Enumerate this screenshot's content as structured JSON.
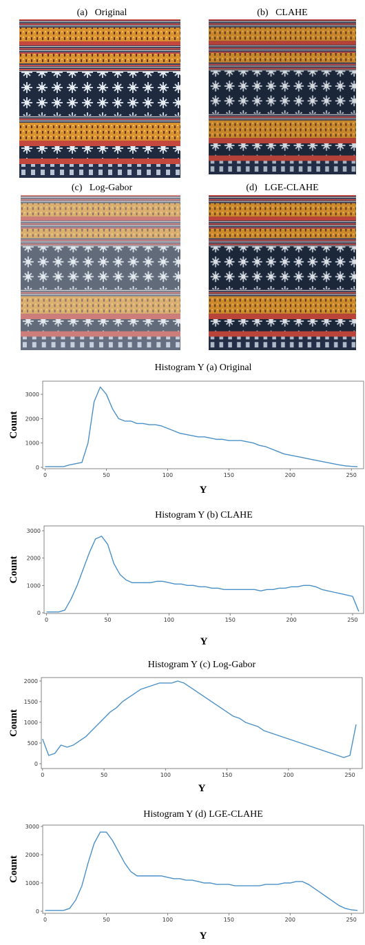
{
  "images": [
    {
      "caption": "(a)   Original"
    },
    {
      "caption": "(b)   CLAHE"
    },
    {
      "caption": "(c)   Log-Gabor"
    },
    {
      "caption": "(d)   LGE-CLAHE"
    }
  ],
  "chart_data": [
    {
      "type": "line",
      "title": "Histogram Y (a) Original",
      "xlabel": "Y",
      "ylabel": "Count",
      "color": "#4a90c8",
      "xlim": [
        -2,
        260
      ],
      "ylim": [
        -57,
        3540
      ],
      "xticks": [
        0,
        50,
        100,
        150,
        200,
        250
      ],
      "yticks": [
        0,
        1000,
        2000,
        3000
      ],
      "x": [
        0,
        5,
        10,
        15,
        20,
        25,
        30,
        35,
        40,
        45,
        50,
        55,
        60,
        65,
        70,
        75,
        80,
        85,
        90,
        95,
        100,
        105,
        110,
        115,
        120,
        125,
        130,
        135,
        140,
        145,
        150,
        155,
        160,
        165,
        170,
        175,
        180,
        185,
        190,
        195,
        200,
        205,
        210,
        215,
        220,
        225,
        230,
        235,
        240,
        245,
        250,
        255
      ],
      "values": [
        30,
        30,
        30,
        30,
        100,
        150,
        200,
        1000,
        2700,
        3300,
        3000,
        2400,
        2000,
        1900,
        1900,
        1800,
        1800,
        1750,
        1750,
        1700,
        1600,
        1500,
        1400,
        1350,
        1300,
        1250,
        1250,
        1200,
        1150,
        1150,
        1100,
        1100,
        1100,
        1050,
        1000,
        900,
        850,
        750,
        650,
        550,
        500,
        450,
        400,
        350,
        300,
        250,
        200,
        150,
        100,
        60,
        40,
        30
      ]
    },
    {
      "type": "line",
      "title": "Histogram Y (b) CLAHE",
      "xlabel": "Y",
      "ylabel": "Count",
      "color": "#4a90c8",
      "xlim": [
        -2,
        259
      ],
      "ylim": [
        -25,
        3176
      ],
      "xticks": [
        0,
        50,
        100,
        150,
        200,
        250
      ],
      "yticks": [
        0,
        1000,
        2000,
        3000
      ],
      "x": [
        0,
        5,
        10,
        15,
        20,
        25,
        30,
        35,
        40,
        45,
        50,
        55,
        60,
        65,
        70,
        75,
        80,
        85,
        90,
        95,
        100,
        105,
        110,
        115,
        120,
        125,
        130,
        135,
        140,
        145,
        150,
        155,
        160,
        165,
        170,
        175,
        180,
        185,
        190,
        195,
        200,
        205,
        210,
        215,
        220,
        225,
        230,
        235,
        240,
        245,
        250,
        255
      ],
      "values": [
        30,
        30,
        30,
        100,
        500,
        1000,
        1600,
        2200,
        2700,
        2800,
        2500,
        1800,
        1400,
        1200,
        1100,
        1100,
        1100,
        1100,
        1150,
        1150,
        1100,
        1050,
        1050,
        1000,
        1000,
        950,
        950,
        900,
        900,
        850,
        850,
        850,
        850,
        850,
        850,
        800,
        850,
        850,
        900,
        900,
        950,
        950,
        1000,
        1000,
        950,
        850,
        800,
        750,
        700,
        650,
        600,
        50
      ]
    },
    {
      "type": "line",
      "title": "Histogram Y (c) Log-Gabor",
      "xlabel": "Y",
      "ylabel": "Count",
      "color": "#4a90c8",
      "xlim": [
        -1,
        260
      ],
      "ylim": [
        -117,
        2083
      ],
      "xticks": [
        0,
        50,
        100,
        150,
        200,
        250
      ],
      "yticks": [
        0,
        500,
        1000,
        1500,
        2000
      ],
      "x": [
        0,
        5,
        10,
        15,
        20,
        25,
        30,
        35,
        40,
        45,
        50,
        55,
        60,
        65,
        70,
        75,
        80,
        85,
        90,
        95,
        100,
        105,
        110,
        115,
        120,
        125,
        130,
        135,
        140,
        145,
        150,
        155,
        160,
        165,
        170,
        175,
        180,
        185,
        190,
        195,
        200,
        205,
        210,
        215,
        220,
        225,
        230,
        235,
        240,
        245,
        250,
        255
      ],
      "values": [
        600,
        200,
        250,
        450,
        400,
        450,
        550,
        650,
        800,
        950,
        1100,
        1250,
        1350,
        1500,
        1600,
        1700,
        1800,
        1850,
        1900,
        1950,
        1950,
        1950,
        2000,
        1950,
        1850,
        1750,
        1650,
        1550,
        1450,
        1350,
        1250,
        1150,
        1100,
        1000,
        950,
        900,
        800,
        750,
        700,
        650,
        600,
        550,
        500,
        450,
        400,
        350,
        300,
        250,
        200,
        150,
        200,
        950
      ]
    },
    {
      "type": "line",
      "title": "Histogram Y (d) LGE-CLAHE",
      "xlabel": "Y",
      "ylabel": "Count",
      "color": "#4a90c8",
      "xlim": [
        -2,
        260
      ],
      "ylim": [
        -73,
        3049
      ],
      "xticks": [
        0,
        50,
        100,
        150,
        200,
        250
      ],
      "yticks": [
        0,
        1000,
        2000,
        3000
      ],
      "x": [
        0,
        5,
        10,
        15,
        20,
        25,
        30,
        35,
        40,
        45,
        50,
        55,
        60,
        65,
        70,
        75,
        80,
        85,
        90,
        95,
        100,
        105,
        110,
        115,
        120,
        125,
        130,
        135,
        140,
        145,
        150,
        155,
        160,
        165,
        170,
        175,
        180,
        185,
        190,
        195,
        200,
        205,
        210,
        215,
        220,
        225,
        230,
        235,
        240,
        245,
        250,
        255
      ],
      "values": [
        30,
        30,
        30,
        30,
        100,
        400,
        900,
        1700,
        2400,
        2800,
        2800,
        2500,
        2100,
        1700,
        1400,
        1250,
        1250,
        1250,
        1250,
        1250,
        1200,
        1150,
        1150,
        1100,
        1100,
        1050,
        1000,
        1000,
        950,
        950,
        950,
        900,
        900,
        900,
        900,
        900,
        950,
        950,
        950,
        1000,
        1000,
        1050,
        1050,
        950,
        800,
        650,
        500,
        350,
        200,
        100,
        50,
        30
      ]
    }
  ]
}
